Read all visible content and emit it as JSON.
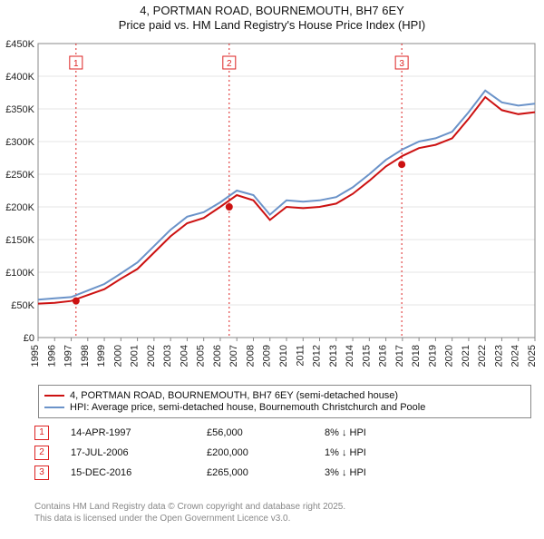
{
  "title": {
    "line1": "4, PORTMAN ROAD, BOURNEMOUTH, BH7 6EY",
    "line2": "Price paid vs. HM Land Registry's House Price Index (HPI)"
  },
  "chart": {
    "type": "line",
    "background": "#ffffff",
    "grid_color": "#e6e6e6",
    "border_color": "#888888",
    "x_years": [
      1995,
      1996,
      1997,
      1998,
      1999,
      2000,
      2001,
      2002,
      2003,
      2004,
      2005,
      2006,
      2007,
      2008,
      2009,
      2010,
      2011,
      2012,
      2013,
      2014,
      2015,
      2016,
      2017,
      2018,
      2019,
      2020,
      2021,
      2022,
      2023,
      2024,
      2025
    ],
    "y_ticks": [
      0,
      50000,
      100000,
      150000,
      200000,
      250000,
      300000,
      350000,
      400000,
      450000
    ],
    "y_tick_labels": [
      "£0",
      "£50K",
      "£100K",
      "£150K",
      "£200K",
      "£250K",
      "£300K",
      "£350K",
      "£400K",
      "£450K"
    ],
    "ylim": [
      0,
      450000
    ],
    "xlim": [
      1995,
      2025
    ],
    "series": [
      {
        "name": "hpi",
        "color": "#6b93c9",
        "width": 2,
        "label": "HPI: Average price, semi-detached house, Bournemouth Christchurch and Poole",
        "points": [
          [
            1995,
            58000
          ],
          [
            1996,
            60000
          ],
          [
            1997,
            62000
          ],
          [
            1998,
            72000
          ],
          [
            1999,
            82000
          ],
          [
            2000,
            98000
          ],
          [
            2001,
            115000
          ],
          [
            2002,
            140000
          ],
          [
            2003,
            165000
          ],
          [
            2004,
            185000
          ],
          [
            2005,
            192000
          ],
          [
            2006,
            207000
          ],
          [
            2007,
            225000
          ],
          [
            2008,
            218000
          ],
          [
            2009,
            188000
          ],
          [
            2010,
            210000
          ],
          [
            2011,
            208000
          ],
          [
            2012,
            210000
          ],
          [
            2013,
            215000
          ],
          [
            2014,
            230000
          ],
          [
            2015,
            250000
          ],
          [
            2016,
            272000
          ],
          [
            2017,
            288000
          ],
          [
            2018,
            300000
          ],
          [
            2019,
            305000
          ],
          [
            2020,
            315000
          ],
          [
            2021,
            345000
          ],
          [
            2022,
            378000
          ],
          [
            2023,
            360000
          ],
          [
            2024,
            355000
          ],
          [
            2025,
            358000
          ]
        ]
      },
      {
        "name": "subject",
        "color": "#cc1111",
        "width": 2,
        "label": "4, PORTMAN ROAD, BOURNEMOUTH, BH7 6EY (semi-detached house)",
        "points": [
          [
            1995,
            52000
          ],
          [
            1996,
            53000
          ],
          [
            1997,
            56000
          ],
          [
            1998,
            65000
          ],
          [
            1999,
            74000
          ],
          [
            2000,
            90000
          ],
          [
            2001,
            105000
          ],
          [
            2002,
            130000
          ],
          [
            2003,
            155000
          ],
          [
            2004,
            175000
          ],
          [
            2005,
            183000
          ],
          [
            2006,
            200000
          ],
          [
            2007,
            218000
          ],
          [
            2008,
            210000
          ],
          [
            2009,
            180000
          ],
          [
            2010,
            200000
          ],
          [
            2011,
            198000
          ],
          [
            2012,
            200000
          ],
          [
            2013,
            205000
          ],
          [
            2014,
            220000
          ],
          [
            2015,
            240000
          ],
          [
            2016,
            262000
          ],
          [
            2017,
            278000
          ],
          [
            2018,
            290000
          ],
          [
            2019,
            295000
          ],
          [
            2020,
            305000
          ],
          [
            2021,
            335000
          ],
          [
            2022,
            368000
          ],
          [
            2023,
            348000
          ],
          [
            2024,
            342000
          ],
          [
            2025,
            345000
          ]
        ]
      }
    ],
    "markers": [
      {
        "index": "1",
        "x_year": 1997.29
      },
      {
        "index": "2",
        "x_year": 2006.54
      },
      {
        "index": "3",
        "x_year": 2016.96
      }
    ],
    "sale_dots": [
      {
        "x_year": 1997.29,
        "y": 56000,
        "color": "#cc1111"
      },
      {
        "x_year": 2006.54,
        "y": 200000,
        "color": "#cc1111"
      },
      {
        "x_year": 2016.96,
        "y": 265000,
        "color": "#cc1111"
      }
    ]
  },
  "events": [
    {
      "n": "1",
      "date": "14-APR-1997",
      "price": "£56,000",
      "delta": "8% ↓ HPI"
    },
    {
      "n": "2",
      "date": "17-JUL-2006",
      "price": "£200,000",
      "delta": "1% ↓ HPI"
    },
    {
      "n": "3",
      "date": "15-DEC-2016",
      "price": "£265,000",
      "delta": "3% ↓ HPI"
    }
  ],
  "footnote": {
    "line1": "Contains HM Land Registry data © Crown copyright and database right 2025.",
    "line2": "This data is licensed under the Open Government Licence v3.0."
  }
}
